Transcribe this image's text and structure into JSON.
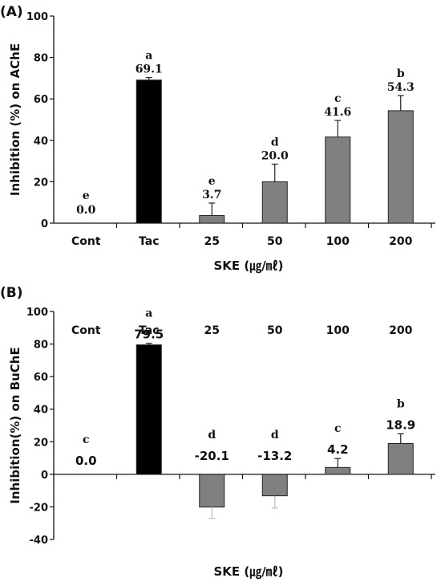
{
  "chart_data": [
    {
      "type": "bar",
      "panel_label": "(A)",
      "categories": [
        "Cont",
        "Tac",
        "25",
        "50",
        "100",
        "200"
      ],
      "values": [
        0.0,
        69.1,
        3.7,
        20.0,
        41.6,
        54.3
      ],
      "errors": [
        0.0,
        1.2,
        6.0,
        8.5,
        8.0,
        7.3
      ],
      "value_labels": [
        "0.0",
        "69.1",
        "3.7",
        "20.0",
        "41.6",
        "54.3"
      ],
      "letters": [
        "e",
        "a",
        "e",
        "d",
        "c",
        "b"
      ],
      "bar_colors": [
        "#000000",
        "#000000",
        "#808080",
        "#808080",
        "#808080",
        "#808080"
      ],
      "xlabel": "SKE (㎍/㎖)",
      "ylabel": "Inhibition  (%)  on AChE",
      "ylim": [
        0,
        100
      ],
      "yticks": [
        "0",
        "20",
        "40",
        "60",
        "80",
        "100"
      ]
    },
    {
      "type": "bar",
      "panel_label": "(B)",
      "categories": [
        "Cont",
        "Tac",
        "25",
        "50",
        "100",
        "200"
      ],
      "values": [
        0.0,
        79.5,
        -20.1,
        -13.2,
        4.2,
        18.9
      ],
      "errors": [
        0.0,
        1.0,
        7.0,
        7.5,
        5.5,
        6.0
      ],
      "value_labels": [
        "0.0",
        "79.5",
        "-20.1",
        "-13.2",
        "4.2",
        "18.9"
      ],
      "letters": [
        "c",
        "a",
        "d",
        "d",
        "c",
        "b"
      ],
      "bar_colors": [
        "#000000",
        "#000000",
        "#808080",
        "#808080",
        "#808080",
        "#808080"
      ],
      "xlabel": "SKE (㎍/㎖)",
      "ylabel": "Inhibition(%) on BuChE",
      "ylim": [
        -40,
        100
      ],
      "yticks": [
        "-40",
        "-20",
        "0",
        "20",
        "40",
        "60",
        "80",
        "100"
      ]
    }
  ]
}
